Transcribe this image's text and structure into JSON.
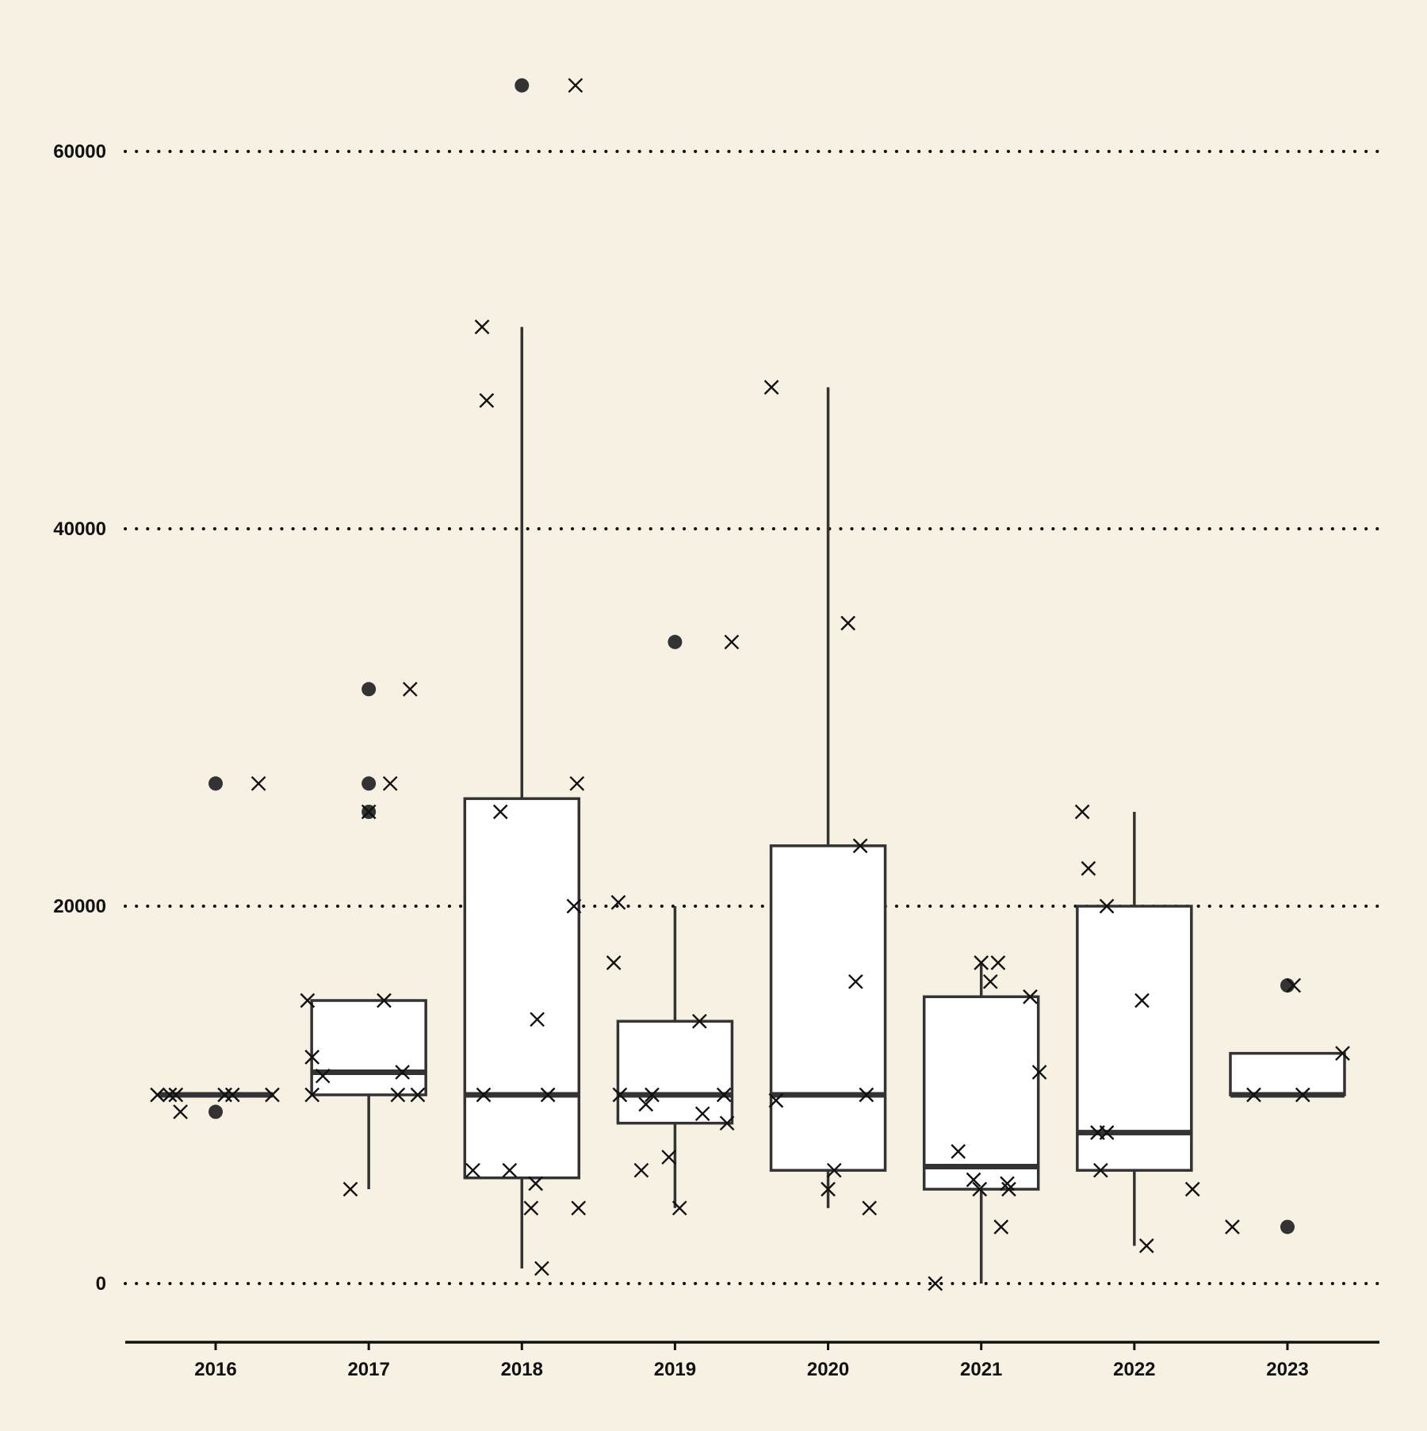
{
  "chart_data": {
    "type": "box",
    "title": "",
    "xlabel": "",
    "ylabel": "",
    "ylim": [
      -3000,
      65000
    ],
    "yticks": [
      0,
      20000,
      40000,
      60000
    ],
    "ytick_labels": [
      "0",
      "20000",
      "40000",
      "60000"
    ],
    "grid": "horizontal-dotted",
    "categories": [
      "2016",
      "2017",
      "2018",
      "2019",
      "2020",
      "2021",
      "2022",
      "2023"
    ],
    "boxes": [
      {
        "year": "2016",
        "whisker_low": 10000,
        "q1": 10000,
        "median": 10000,
        "q3": 10000,
        "whisker_high": 10000,
        "outliers": [
          9100,
          26500
        ]
      },
      {
        "year": "2017",
        "whisker_low": 5000,
        "q1": 10000,
        "median": 11200,
        "q3": 15000,
        "whisker_high": 15000,
        "outliers": [
          25000,
          26500,
          31500
        ]
      },
      {
        "year": "2018",
        "whisker_low": 800,
        "q1": 5600,
        "median": 10000,
        "q3": 25700,
        "whisker_high": 50700,
        "outliers": [
          63500
        ]
      },
      {
        "year": "2019",
        "whisker_low": 4000,
        "q1": 8500,
        "median": 10000,
        "q3": 13900,
        "whisker_high": 20000,
        "outliers": [
          34000
        ]
      },
      {
        "year": "2020",
        "whisker_low": 4000,
        "q1": 6000,
        "median": 10000,
        "q3": 23200,
        "whisker_high": 47500,
        "outliers": []
      },
      {
        "year": "2021",
        "whisker_low": 0,
        "q1": 5000,
        "median": 6200,
        "q3": 15200,
        "whisker_high": 17000,
        "outliers": []
      },
      {
        "year": "2022",
        "whisker_low": 2000,
        "q1": 6000,
        "median": 8000,
        "q3": 20000,
        "whisker_high": 25000,
        "outliers": []
      },
      {
        "year": "2023",
        "whisker_low": 10000,
        "q1": 10000,
        "median": 10000,
        "q3": 12200,
        "whisker_high": 12200,
        "outliers": [
          3000,
          15800
        ]
      }
    ],
    "points": [
      {
        "year": "2016",
        "offset": -0.38,
        "y": 10000
      },
      {
        "year": "2016",
        "offset": -0.3,
        "y": 10000
      },
      {
        "year": "2016",
        "offset": -0.26,
        "y": 10000
      },
      {
        "year": "2016",
        "offset": -0.23,
        "y": 9100
      },
      {
        "year": "2016",
        "offset": 0.06,
        "y": 10000
      },
      {
        "year": "2016",
        "offset": 0.11,
        "y": 10000
      },
      {
        "year": "2016",
        "offset": 0.28,
        "y": 26500
      },
      {
        "year": "2016",
        "offset": 0.37,
        "y": 10000
      },
      {
        "year": "2017",
        "offset": -0.4,
        "y": 15000
      },
      {
        "year": "2017",
        "offset": -0.37,
        "y": 12000
      },
      {
        "year": "2017",
        "offset": -0.37,
        "y": 10000
      },
      {
        "year": "2017",
        "offset": -0.3,
        "y": 11000
      },
      {
        "year": "2017",
        "offset": -0.12,
        "y": 5000
      },
      {
        "year": "2017",
        "offset": 0.0,
        "y": 25000
      },
      {
        "year": "2017",
        "offset": 0.1,
        "y": 15000
      },
      {
        "year": "2017",
        "offset": 0.14,
        "y": 26500
      },
      {
        "year": "2017",
        "offset": 0.19,
        "y": 10000
      },
      {
        "year": "2017",
        "offset": 0.22,
        "y": 11200
      },
      {
        "year": "2017",
        "offset": 0.27,
        "y": 31500
      },
      {
        "year": "2017",
        "offset": 0.32,
        "y": 10000
      },
      {
        "year": "2018",
        "offset": -0.32,
        "y": 6000
      },
      {
        "year": "2018",
        "offset": -0.26,
        "y": 50700
      },
      {
        "year": "2018",
        "offset": -0.23,
        "y": 46800
      },
      {
        "year": "2018",
        "offset": -0.25,
        "y": 10000
      },
      {
        "year": "2018",
        "offset": -0.14,
        "y": 25000
      },
      {
        "year": "2018",
        "offset": -0.08,
        "y": 6000
      },
      {
        "year": "2018",
        "offset": 0.06,
        "y": 4000
      },
      {
        "year": "2018",
        "offset": 0.09,
        "y": 5300
      },
      {
        "year": "2018",
        "offset": 0.1,
        "y": 14000
      },
      {
        "year": "2018",
        "offset": 0.13,
        "y": 800
      },
      {
        "year": "2018",
        "offset": 0.17,
        "y": 10000
      },
      {
        "year": "2018",
        "offset": 0.34,
        "y": 20000
      },
      {
        "year": "2018",
        "offset": 0.35,
        "y": 63500
      },
      {
        "year": "2018",
        "offset": 0.36,
        "y": 26500
      },
      {
        "year": "2018",
        "offset": 0.37,
        "y": 4000
      },
      {
        "year": "2019",
        "offset": -0.4,
        "y": 17000
      },
      {
        "year": "2019",
        "offset": -0.37,
        "y": 20200
      },
      {
        "year": "2019",
        "offset": -0.36,
        "y": 10000
      },
      {
        "year": "2019",
        "offset": -0.22,
        "y": 6000
      },
      {
        "year": "2019",
        "offset": -0.19,
        "y": 9500
      },
      {
        "year": "2019",
        "offset": -0.15,
        "y": 10000
      },
      {
        "year": "2019",
        "offset": -0.04,
        "y": 6700
      },
      {
        "year": "2019",
        "offset": 0.03,
        "y": 4000
      },
      {
        "year": "2019",
        "offset": 0.16,
        "y": 13900
      },
      {
        "year": "2019",
        "offset": 0.18,
        "y": 9000
      },
      {
        "year": "2019",
        "offset": 0.32,
        "y": 10000
      },
      {
        "year": "2019",
        "offset": 0.34,
        "y": 8500
      },
      {
        "year": "2019",
        "offset": 0.37,
        "y": 34000
      },
      {
        "year": "2020",
        "offset": -0.37,
        "y": 47500
      },
      {
        "year": "2020",
        "offset": -0.34,
        "y": 9700
      },
      {
        "year": "2020",
        "offset": 0.0,
        "y": 5000
      },
      {
        "year": "2020",
        "offset": 0.04,
        "y": 6000
      },
      {
        "year": "2020",
        "offset": 0.13,
        "y": 35000
      },
      {
        "year": "2020",
        "offset": 0.18,
        "y": 16000
      },
      {
        "year": "2020",
        "offset": 0.21,
        "y": 23200
      },
      {
        "year": "2020",
        "offset": 0.25,
        "y": 10000
      },
      {
        "year": "2020",
        "offset": 0.27,
        "y": 4000
      },
      {
        "year": "2021",
        "offset": -0.3,
        "y": 0
      },
      {
        "year": "2021",
        "offset": -0.15,
        "y": 7000
      },
      {
        "year": "2021",
        "offset": -0.05,
        "y": 5500
      },
      {
        "year": "2021",
        "offset": -0.01,
        "y": 5000
      },
      {
        "year": "2021",
        "offset": 0.0,
        "y": 17000
      },
      {
        "year": "2021",
        "offset": 0.06,
        "y": 16000
      },
      {
        "year": "2021",
        "offset": 0.11,
        "y": 17000
      },
      {
        "year": "2021",
        "offset": 0.13,
        "y": 3000
      },
      {
        "year": "2021",
        "offset": 0.17,
        "y": 5300
      },
      {
        "year": "2021",
        "offset": 0.18,
        "y": 5000
      },
      {
        "year": "2021",
        "offset": 0.32,
        "y": 15200
      },
      {
        "year": "2021",
        "offset": 0.38,
        "y": 11200
      },
      {
        "year": "2022",
        "offset": -0.34,
        "y": 25000
      },
      {
        "year": "2022",
        "offset": -0.3,
        "y": 22000
      },
      {
        "year": "2022",
        "offset": -0.24,
        "y": 8000
      },
      {
        "year": "2022",
        "offset": -0.22,
        "y": 6000
      },
      {
        "year": "2022",
        "offset": -0.18,
        "y": 8000
      },
      {
        "year": "2022",
        "offset": -0.18,
        "y": 20000
      },
      {
        "year": "2022",
        "offset": 0.05,
        "y": 15000
      },
      {
        "year": "2022",
        "offset": 0.08,
        "y": 2000
      },
      {
        "year": "2022",
        "offset": 0.38,
        "y": 5000
      },
      {
        "year": "2023",
        "offset": -0.36,
        "y": 3000
      },
      {
        "year": "2023",
        "offset": -0.22,
        "y": 10000
      },
      {
        "year": "2023",
        "offset": 0.04,
        "y": 15800
      },
      {
        "year": "2023",
        "offset": 0.1,
        "y": 10000
      },
      {
        "year": "2023",
        "offset": 0.36,
        "y": 12200
      }
    ]
  }
}
